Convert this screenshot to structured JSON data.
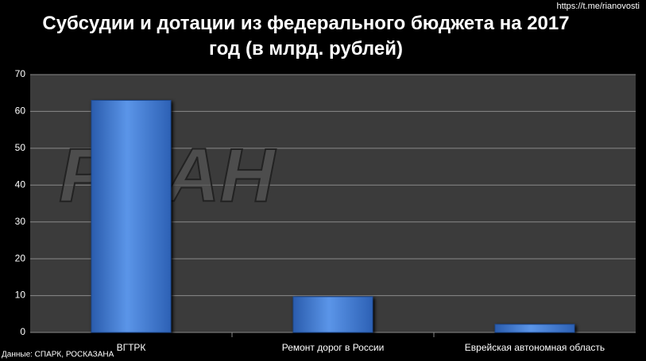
{
  "chart_data": {
    "type": "bar",
    "title": "Субсудии и дотации из федерального бюджета на 2017 год (в млрд. рублей)",
    "categories": [
      "ВГТРК",
      "Ремонт дорог в России",
      "Еврейская автономная область"
    ],
    "values": [
      63,
      9.7,
      2.2
    ],
    "color": "#3f78d0",
    "ylim": [
      0,
      70
    ],
    "yticks": [
      0,
      10,
      20,
      30,
      40,
      50,
      60,
      70
    ],
    "grid": true,
    "watermark": "РИАН",
    "source": "Данные: СПАРК, РОСКАЗАНА",
    "link": "https://t.me/rianovosti"
  }
}
